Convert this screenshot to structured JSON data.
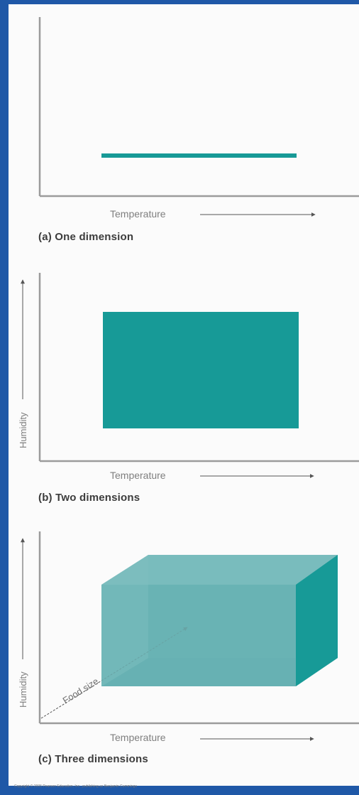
{
  "panels": [
    {
      "caption": "(a) One dimension",
      "x_label": "Temperature"
    },
    {
      "caption": "(b) Two dimensions",
      "x_label": "Temperature",
      "y_label": "Humidity"
    },
    {
      "caption": "(c) Three dimensions",
      "x_label": "Temperature",
      "y_label": "Humidity",
      "z_label": "Food size"
    }
  ],
  "colors": {
    "page_background": "#1f58a7",
    "panel_background": "#fbfbfb",
    "fill": "#179a97",
    "fill_light": "#86c3c4",
    "fill_mid": "#6db5b6",
    "axis": "#9b9b9b"
  },
  "copyright": "Copyright © 2005 Pearson Education, Inc., publishing as Benjamin Cummings"
}
